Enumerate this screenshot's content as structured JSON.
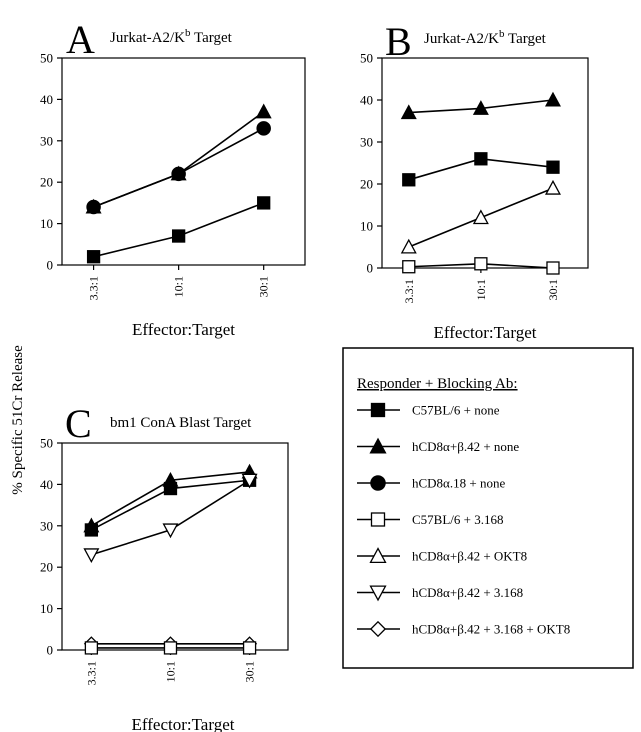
{
  "figure": {
    "ylabel": "% Specific 51Cr Release",
    "legend_title": "Responder + Blocking Ab:"
  },
  "series_styles": [
    {
      "name": "C57BL/6 + none",
      "marker": "square",
      "fill": "#000000"
    },
    {
      "name": "hCD8α+β.42 + none",
      "marker": "triangle-up",
      "fill": "#000000"
    },
    {
      "name": "hCD8α.18 + none",
      "marker": "circle",
      "fill": "#000000"
    },
    {
      "name": "C57BL/6 + 3.168",
      "marker": "square",
      "fill": "#ffffff"
    },
    {
      "name": "hCD8α+β.42 + OKT8",
      "marker": "triangle-up",
      "fill": "#ffffff"
    },
    {
      "name": "hCD8α+β.42 + 3.168",
      "marker": "triangle-down",
      "fill": "#ffffff"
    },
    {
      "name": "hCD8α+β.42 + 3.168 + OKT8",
      "marker": "diamond",
      "fill": "#ffffff"
    }
  ],
  "chart_data": [
    {
      "type": "line",
      "panel": "A",
      "title": "Jurkat-A2/K",
      "title_sup": "b",
      "title_suffix": " Target",
      "categories": [
        "3.3:1",
        "10:1",
        "30:1"
      ],
      "xlabel": "Effector:Target",
      "ylim": [
        0,
        50
      ],
      "yticks": [
        0,
        10,
        20,
        30,
        40,
        50
      ],
      "series": [
        {
          "name": "hCD8α+β.42 + none",
          "values": [
            14,
            22,
            37
          ]
        },
        {
          "name": "hCD8α.18 + none",
          "values": [
            14,
            22,
            33
          ]
        },
        {
          "name": "C57BL/6 + none",
          "values": [
            2,
            7,
            15
          ]
        }
      ]
    },
    {
      "type": "line",
      "panel": "B",
      "title": "Jurkat-A2/K",
      "title_sup": "b",
      "title_suffix": " Target",
      "categories": [
        "3.3:1",
        "10:1",
        "30:1"
      ],
      "xlabel": "Effector:Target",
      "ylim": [
        0,
        50
      ],
      "yticks": [
        0,
        10,
        20,
        30,
        40,
        50
      ],
      "series": [
        {
          "name": "hCD8α+β.42 + none",
          "values": [
            37,
            38,
            40
          ]
        },
        {
          "name": "C57BL/6 + none",
          "values": [
            21,
            26,
            24
          ]
        },
        {
          "name": "hCD8α+β.42 + OKT8",
          "values": [
            5,
            12,
            19
          ]
        },
        {
          "name": "C57BL/6 + 3.168",
          "values": [
            0.3,
            1,
            0
          ]
        }
      ]
    },
    {
      "type": "line",
      "panel": "C",
      "title": "bm1 ConA Blast Target",
      "title_sup": "",
      "title_suffix": "",
      "categories": [
        "3.3:1",
        "10:1",
        "30:1"
      ],
      "xlabel": "Effector:Target",
      "ylim": [
        0,
        50
      ],
      "yticks": [
        0,
        10,
        20,
        30,
        40,
        50
      ],
      "series": [
        {
          "name": "hCD8α+β.42 + none",
          "values": [
            30,
            41,
            43
          ]
        },
        {
          "name": "C57BL/6 + none",
          "values": [
            29,
            39,
            41
          ]
        },
        {
          "name": "hCD8α+β.42 + 3.168",
          "values": [
            23,
            29,
            41
          ]
        },
        {
          "name": "hCD8α+β.42 + 3.168 + OKT8",
          "values": [
            1.5,
            1.5,
            1.5
          ]
        },
        {
          "name": "C57BL/6 + 3.168",
          "values": [
            0.5,
            0.5,
            0.5
          ]
        }
      ]
    }
  ]
}
